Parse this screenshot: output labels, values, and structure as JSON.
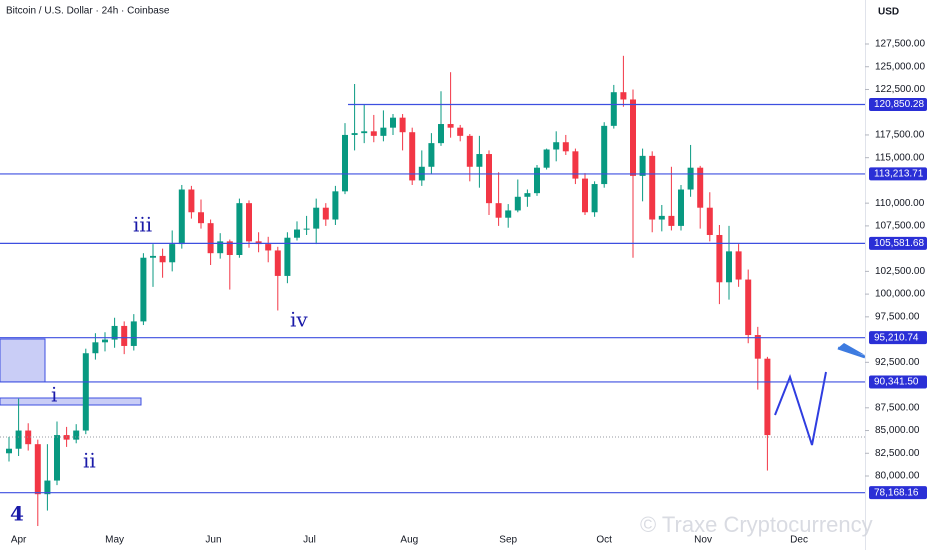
{
  "chart_data": {
    "type": "candlestick",
    "title": "Bitcoin / U.S. Dollar · 24h · Coinbase",
    "currency": "USD",
    "watermark": "© Traxe Cryptocurrency",
    "up_color": "#089981",
    "down_color": "#f23645",
    "level_color": "#3d4fe0",
    "ylim": [
      71865,
      132337
    ],
    "yticks": [
      {
        "value": 80000,
        "label": "80,000.00"
      },
      {
        "value": 82500,
        "label": "82,500.00"
      },
      {
        "value": 85000,
        "label": "85,000.00"
      },
      {
        "value": 87500,
        "label": "87,500.00"
      },
      {
        "value": 92500,
        "label": "92,500.00"
      },
      {
        "value": 97500,
        "label": "97,500.00"
      },
      {
        "value": 100000,
        "label": "100,000.00"
      },
      {
        "value": 102500,
        "label": "102,500.00"
      },
      {
        "value": 107500,
        "label": "107,500.00"
      },
      {
        "value": 110000,
        "label": "110,000.00"
      },
      {
        "value": 115000,
        "label": "115,000.00"
      },
      {
        "value": 117500,
        "label": "117,500.00"
      },
      {
        "value": 122500,
        "label": "122,500.00"
      },
      {
        "value": 125000,
        "label": "125,000.00"
      },
      {
        "value": 127500,
        "label": "127,500.00"
      }
    ],
    "xticks": [
      {
        "value": 1,
        "label": "Apr"
      },
      {
        "value": 11,
        "label": "May"
      },
      {
        "value": 21.3,
        "label": "Jun"
      },
      {
        "value": 31.3,
        "label": "Jul"
      },
      {
        "value": 41.7,
        "label": "Aug"
      },
      {
        "value": 52,
        "label": "Sep"
      },
      {
        "value": 62,
        "label": "Oct"
      },
      {
        "value": 72.3,
        "label": "Nov"
      },
      {
        "value": 82.3,
        "label": "Dec"
      }
    ],
    "levels": [
      {
        "value": 120850.28,
        "label": "120,850.28"
      },
      {
        "value": 113213.71,
        "label": "113,213.71"
      },
      {
        "value": 105581.68,
        "label": "105,581.68"
      },
      {
        "value": 95210.74,
        "label": "95,210.74"
      },
      {
        "value": 90341.5,
        "label": "90,341.50"
      },
      {
        "value": 78168.16,
        "label": "78,168.16"
      }
    ],
    "annotations": [
      "iii",
      "iv",
      "i",
      "ii",
      "4"
    ],
    "candles": [
      [
        82500,
        84300,
        81600,
        83000
      ],
      [
        83000,
        88500,
        82200,
        85000
      ],
      [
        85000,
        85800,
        82800,
        83500
      ],
      [
        83500,
        84000,
        74500,
        78000
      ],
      [
        78000,
        83500,
        76200,
        79500
      ],
      [
        79500,
        86000,
        79000,
        84500
      ],
      [
        84500,
        85400,
        83200,
        84000
      ],
      [
        84000,
        85700,
        83600,
        85000
      ],
      [
        85000,
        94000,
        84600,
        93500
      ],
      [
        93500,
        95700,
        92800,
        94700
      ],
      [
        94700,
        95800,
        93700,
        95000
      ],
      [
        95000,
        97400,
        94100,
        96500
      ],
      [
        96500,
        97000,
        93400,
        94300
      ],
      [
        94300,
        97800,
        93800,
        97000
      ],
      [
        97000,
        104500,
        96600,
        104000
      ],
      [
        104000,
        105500,
        100800,
        104200
      ],
      [
        104200,
        105000,
        101800,
        103500
      ],
      [
        103500,
        107000,
        102500,
        105500
      ],
      [
        105500,
        112000,
        105000,
        111500
      ],
      [
        111500,
        111900,
        108300,
        109000
      ],
      [
        109000,
        110400,
        107200,
        107800
      ],
      [
        107800,
        108200,
        103200,
        104500
      ],
      [
        104500,
        106700,
        103900,
        105800
      ],
      [
        105800,
        106000,
        100500,
        104300
      ],
      [
        104300,
        110500,
        104000,
        110000
      ],
      [
        110000,
        110300,
        105100,
        105800
      ],
      [
        105800,
        106800,
        104600,
        105500
      ],
      [
        105500,
        106300,
        103500,
        104800
      ],
      [
        104800,
        105200,
        98200,
        102000
      ],
      [
        102000,
        106800,
        101200,
        106200
      ],
      [
        106200,
        108000,
        105900,
        107100
      ],
      [
        107100,
        108600,
        106500,
        107200
      ],
      [
        107200,
        110500,
        105500,
        109500
      ],
      [
        109500,
        110000,
        107500,
        108200
      ],
      [
        108200,
        111900,
        107600,
        111300
      ],
      [
        111300,
        118800,
        111000,
        117500
      ],
      [
        117500,
        123100,
        115800,
        117700
      ],
      [
        117700,
        120900,
        116600,
        117900
      ],
      [
        117900,
        119700,
        116700,
        117400
      ],
      [
        117400,
        120200,
        116800,
        118300
      ],
      [
        118300,
        119800,
        117500,
        119400
      ],
      [
        119400,
        119800,
        115800,
        117800
      ],
      [
        117800,
        118300,
        112000,
        112500
      ],
      [
        112500,
        115800,
        111900,
        114000
      ],
      [
        114000,
        117700,
        113200,
        116600
      ],
      [
        116600,
        122300,
        116300,
        118700
      ],
      [
        118700,
        124400,
        117200,
        118300
      ],
      [
        118300,
        118600,
        116800,
        117400
      ],
      [
        117400,
        117600,
        112400,
        114000
      ],
      [
        114000,
        117400,
        111700,
        115400
      ],
      [
        115400,
        115800,
        108700,
        110000
      ],
      [
        110000,
        113400,
        107500,
        108400
      ],
      [
        108400,
        109900,
        107300,
        109200
      ],
      [
        109200,
        112600,
        109000,
        110700
      ],
      [
        110700,
        111500,
        109600,
        111100
      ],
      [
        111100,
        114200,
        110800,
        113900
      ],
      [
        113900,
        116000,
        113700,
        115900
      ],
      [
        115900,
        117900,
        114600,
        116700
      ],
      [
        116700,
        117500,
        115300,
        115700
      ],
      [
        115700,
        116000,
        112100,
        112700
      ],
      [
        112700,
        113300,
        108700,
        109000
      ],
      [
        109000,
        112400,
        108500,
        112100
      ],
      [
        112100,
        118900,
        111700,
        118500
      ],
      [
        118500,
        123000,
        118200,
        122200
      ],
      [
        122200,
        126200,
        120600,
        121400
      ],
      [
        121400,
        122500,
        104000,
        113000
      ],
      [
        113000,
        116000,
        110200,
        115200
      ],
      [
        115200,
        115700,
        106800,
        108200
      ],
      [
        108200,
        109800,
        106900,
        108600
      ],
      [
        108600,
        114000,
        107000,
        107500
      ],
      [
        107500,
        112000,
        107000,
        111500
      ],
      [
        111500,
        116400,
        110700,
        113900
      ],
      [
        113900,
        114100,
        107200,
        109500
      ],
      [
        109500,
        111200,
        105800,
        106500
      ],
      [
        106500,
        107600,
        98900,
        101300
      ],
      [
        101300,
        107500,
        99400,
        104700
      ],
      [
        104700,
        105500,
        100800,
        101600
      ],
      [
        101600,
        102700,
        94600,
        95500
      ],
      [
        95500,
        96400,
        89500,
        92900
      ],
      [
        92900,
        93100,
        80600,
        84500
      ]
    ]
  }
}
